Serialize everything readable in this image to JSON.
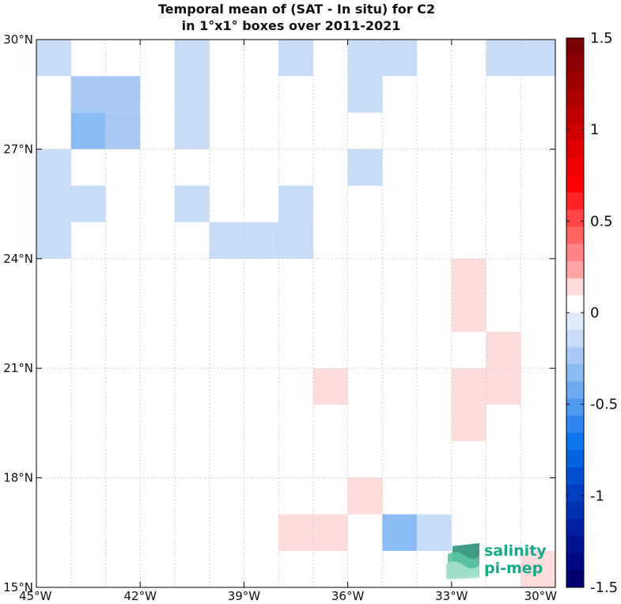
{
  "title_lines": [
    "Temporal mean of (SAT - In situ) for C2",
    "in 1°x1° boxes over 2011-2021"
  ],
  "map": {
    "lon_range": [
      -45,
      -30
    ],
    "lat_range": [
      15,
      30
    ],
    "x_ticks": [
      {
        "value": -45,
        "label": "45°W"
      },
      {
        "value": -42,
        "label": "42°W"
      },
      {
        "value": -39,
        "label": "39°W"
      },
      {
        "value": -36,
        "label": "36°W"
      },
      {
        "value": -33,
        "label": "33°W"
      },
      {
        "value": -30,
        "label": "30°W"
      }
    ],
    "y_ticks": [
      {
        "value": 30,
        "label": "30°N"
      },
      {
        "value": 27,
        "label": "27°N"
      },
      {
        "value": 24,
        "label": "24°N"
      },
      {
        "value": 21,
        "label": "21°N"
      },
      {
        "value": 18,
        "label": "18°N"
      },
      {
        "value": 15,
        "label": "15°N"
      }
    ],
    "grid": "dotted",
    "cells": [
      {
        "lon": -45,
        "lat": 29,
        "v": -0.15
      },
      {
        "lon": -41,
        "lat": 29,
        "v": -0.15
      },
      {
        "lon": -38,
        "lat": 29,
        "v": -0.15
      },
      {
        "lon": -36,
        "lat": 29,
        "v": -0.15
      },
      {
        "lon": -35,
        "lat": 29,
        "v": -0.15
      },
      {
        "lon": -32,
        "lat": 29,
        "v": -0.15
      },
      {
        "lon": -31,
        "lat": 29,
        "v": -0.15
      },
      {
        "lon": -44,
        "lat": 28,
        "v": -0.2
      },
      {
        "lon": -43,
        "lat": 28,
        "v": -0.2
      },
      {
        "lon": -41,
        "lat": 28,
        "v": -0.15
      },
      {
        "lon": -36,
        "lat": 28,
        "v": -0.15
      },
      {
        "lon": -44,
        "lat": 27,
        "v": -0.3
      },
      {
        "lon": -43,
        "lat": 27,
        "v": -0.2
      },
      {
        "lon": -41,
        "lat": 27,
        "v": -0.15
      },
      {
        "lon": -45,
        "lat": 26,
        "v": -0.15
      },
      {
        "lon": -36,
        "lat": 26,
        "v": -0.15
      },
      {
        "lon": -45,
        "lat": 25,
        "v": -0.15
      },
      {
        "lon": -44,
        "lat": 25,
        "v": -0.15
      },
      {
        "lon": -41,
        "lat": 25,
        "v": -0.15
      },
      {
        "lon": -38,
        "lat": 25,
        "v": -0.15
      },
      {
        "lon": -45,
        "lat": 24,
        "v": -0.15
      },
      {
        "lon": -40,
        "lat": 24,
        "v": -0.15
      },
      {
        "lon": -39,
        "lat": 24,
        "v": -0.15
      },
      {
        "lon": -38,
        "lat": 24,
        "v": -0.15
      },
      {
        "lon": -33,
        "lat": 23,
        "v": 0.15
      },
      {
        "lon": -33,
        "lat": 22,
        "v": 0.15
      },
      {
        "lon": -32,
        "lat": 21,
        "v": 0.15
      },
      {
        "lon": -37,
        "lat": 20,
        "v": 0.15
      },
      {
        "lon": -33,
        "lat": 20,
        "v": 0.15
      },
      {
        "lon": -32,
        "lat": 20,
        "v": 0.15
      },
      {
        "lon": -33,
        "lat": 19,
        "v": 0.15
      },
      {
        "lon": -36,
        "lat": 17,
        "v": 0.15
      },
      {
        "lon": -38,
        "lat": 16,
        "v": 0.15
      },
      {
        "lon": -37,
        "lat": 16,
        "v": 0.15
      },
      {
        "lon": -35,
        "lat": 16,
        "v": -0.3
      },
      {
        "lon": -34,
        "lat": 16,
        "v": -0.15
      },
      {
        "lon": -31,
        "lat": 15,
        "v": 0.15
      }
    ]
  },
  "colorbar": {
    "range": [
      -1.5,
      1.5
    ],
    "ticks": [
      {
        "value": 1.5,
        "label": "1.5"
      },
      {
        "value": 1,
        "label": "1"
      },
      {
        "value": 0.5,
        "label": "0.5"
      },
      {
        "value": 0,
        "label": "0"
      },
      {
        "value": -0.5,
        "label": "-0.5"
      },
      {
        "value": -1,
        "label": "-1"
      },
      {
        "value": -1.5,
        "label": "-1.5"
      }
    ],
    "colors_top_to_bottom": [
      "#7a0000",
      "#8b0000",
      "#9c0000",
      "#ad0000",
      "#be0000",
      "#cf0000",
      "#e00000",
      "#f00000",
      "#ff0000",
      "#ff2424",
      "#ff4444",
      "#ff6464",
      "#ff8484",
      "#ffa4a4",
      "#ffdcdc",
      "#ffffff",
      "#e0ecfb",
      "#c6dcf8",
      "#a8cbf6",
      "#8bbbf4",
      "#6eaaf2",
      "#4f98f0",
      "#2f86ee",
      "#0f75ec",
      "#0064e0",
      "#0050d0",
      "#0040c0",
      "#0030b0",
      "#0020a0",
      "#001490",
      "#000880",
      "#000070"
    ]
  },
  "logo": {
    "line1": "salinity",
    "line2": "pi-mep",
    "mark_colors": [
      "#2a8f7a",
      "#5cc3a4",
      "#a6e0cc"
    ]
  }
}
